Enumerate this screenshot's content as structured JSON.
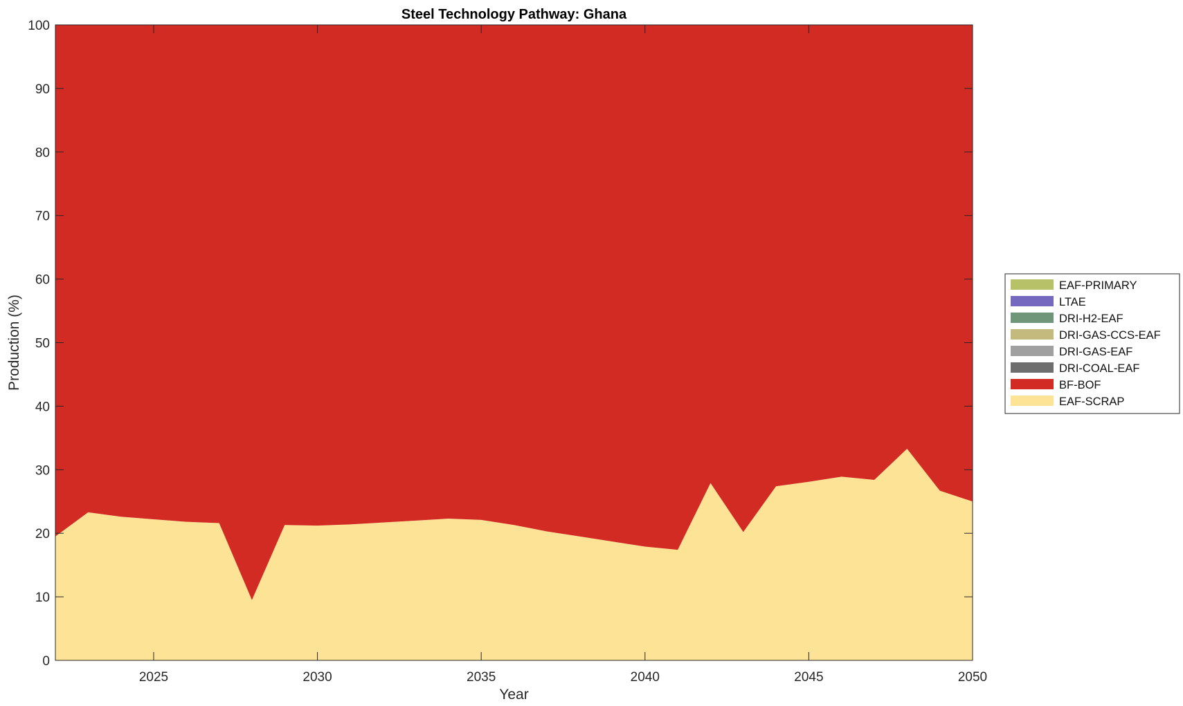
{
  "chart_data": {
    "type": "area",
    "stacked": true,
    "title": "Steel Technology Pathway: Ghana",
    "xlabel": "Year",
    "ylabel": "Production (%)",
    "xlim": [
      2022,
      2050
    ],
    "ylim": [
      0,
      100
    ],
    "xticks": [
      2025,
      2030,
      2035,
      2040,
      2045,
      2050
    ],
    "yticks": [
      0,
      10,
      20,
      30,
      40,
      50,
      60,
      70,
      80,
      90,
      100
    ],
    "grid": false,
    "legend_position": "right",
    "x": [
      2022,
      2023,
      2024,
      2025,
      2026,
      2027,
      2028,
      2029,
      2030,
      2031,
      2032,
      2033,
      2034,
      2035,
      2036,
      2037,
      2038,
      2039,
      2040,
      2041,
      2042,
      2043,
      2044,
      2045,
      2046,
      2047,
      2048,
      2049,
      2050
    ],
    "series": [
      {
        "name": "EAF-SCRAP",
        "color": "#fde396",
        "values": [
          19.5,
          23.3,
          22.6,
          22.2,
          21.8,
          21.6,
          9.5,
          21.3,
          21.2,
          21.4,
          21.7,
          22.0,
          22.3,
          22.1,
          21.3,
          20.3,
          19.5,
          18.7,
          17.9,
          17.4,
          27.9,
          20.2,
          27.4,
          28.1,
          28.9,
          28.4,
          33.3,
          26.7,
          25.0
        ]
      },
      {
        "name": "BF-BOF",
        "color": "#d22b23",
        "values": [
          80.5,
          76.7,
          77.4,
          77.8,
          78.2,
          78.4,
          90.5,
          78.7,
          78.8,
          78.6,
          78.3,
          78.0,
          77.7,
          77.9,
          78.7,
          79.7,
          80.5,
          81.3,
          82.1,
          82.6,
          72.1,
          79.8,
          72.6,
          71.9,
          71.1,
          71.6,
          66.7,
          73.3,
          75.0
        ]
      },
      {
        "name": "DRI-COAL-EAF",
        "color": "#6e6e6e",
        "values": [
          0,
          0,
          0,
          0,
          0,
          0,
          0,
          0,
          0,
          0,
          0,
          0,
          0,
          0,
          0,
          0,
          0,
          0,
          0,
          0,
          0,
          0,
          0,
          0,
          0,
          0,
          0,
          0,
          0
        ]
      },
      {
        "name": "DRI-GAS-EAF",
        "color": "#a0a0a0",
        "values": [
          0,
          0,
          0,
          0,
          0,
          0,
          0,
          0,
          0,
          0,
          0,
          0,
          0,
          0,
          0,
          0,
          0,
          0,
          0,
          0,
          0,
          0,
          0,
          0,
          0,
          0,
          0,
          0,
          0
        ]
      },
      {
        "name": "DRI-GAS-CCS-EAF",
        "color": "#c4ba7d",
        "values": [
          0,
          0,
          0,
          0,
          0,
          0,
          0,
          0,
          0,
          0,
          0,
          0,
          0,
          0,
          0,
          0,
          0,
          0,
          0,
          0,
          0,
          0,
          0,
          0,
          0,
          0,
          0,
          0,
          0
        ]
      },
      {
        "name": "DRI-H2-EAF",
        "color": "#6f9679",
        "values": [
          0,
          0,
          0,
          0,
          0,
          0,
          0,
          0,
          0,
          0,
          0,
          0,
          0,
          0,
          0,
          0,
          0,
          0,
          0,
          0,
          0,
          0,
          0,
          0,
          0,
          0,
          0,
          0,
          0
        ]
      },
      {
        "name": "LTAE",
        "color": "#7569bf",
        "values": [
          0,
          0,
          0,
          0,
          0,
          0,
          0,
          0,
          0,
          0,
          0,
          0,
          0,
          0,
          0,
          0,
          0,
          0,
          0,
          0,
          0,
          0,
          0,
          0,
          0,
          0,
          0,
          0,
          0
        ]
      },
      {
        "name": "EAF-PRIMARY",
        "color": "#b7c167",
        "values": [
          0,
          0,
          0,
          0,
          0,
          0,
          0,
          0,
          0,
          0,
          0,
          0,
          0,
          0,
          0,
          0,
          0,
          0,
          0,
          0,
          0,
          0,
          0,
          0,
          0,
          0,
          0,
          0,
          0
        ]
      }
    ],
    "legend_order": [
      "EAF-PRIMARY",
      "LTAE",
      "DRI-H2-EAF",
      "DRI-GAS-CCS-EAF",
      "DRI-GAS-EAF",
      "DRI-COAL-EAF",
      "BF-BOF",
      "EAF-SCRAP"
    ]
  }
}
